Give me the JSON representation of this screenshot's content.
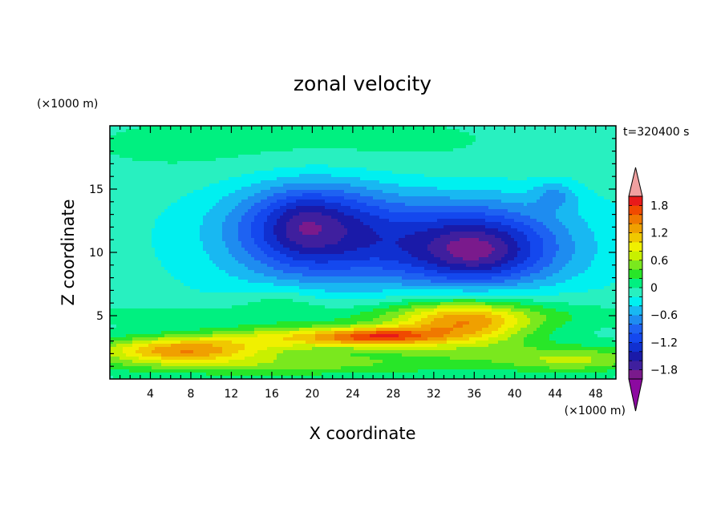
{
  "chart_data": {
    "type": "heatmap",
    "title": "zonal velocity",
    "xlabel": "X coordinate",
    "ylabel": "Z coordinate",
    "x_unit": "(×1000 m)",
    "z_unit": "(×1000 m)",
    "time_label": "t=320400 s",
    "xlim": [
      0,
      50
    ],
    "ylim": [
      0,
      20
    ],
    "x_ticks": [
      4,
      8,
      12,
      16,
      20,
      24,
      28,
      32,
      36,
      40,
      44,
      48
    ],
    "y_ticks": [
      5,
      10,
      15
    ],
    "colorbar": {
      "levels": [
        -2.0,
        -1.8,
        -1.6,
        -1.4,
        -1.2,
        -1.0,
        -0.8,
        -0.6,
        -0.4,
        -0.2,
        0,
        0.2,
        0.4,
        0.6,
        0.8,
        1.0,
        1.2,
        1.4,
        1.6,
        1.8,
        2.0
      ],
      "colors": [
        "#7a1a8c",
        "#3f1f9e",
        "#1a1aa8",
        "#1030d0",
        "#1448ee",
        "#1e62f2",
        "#1e8cf0",
        "#18b8f2",
        "#00f0f0",
        "#28f0c0",
        "#00f080",
        "#28e628",
        "#7ae81e",
        "#c8f000",
        "#f0f000",
        "#f0c800",
        "#f0a000",
        "#f07800",
        "#f04a00",
        "#e81a1a"
      ],
      "under_color": "#8c0aa0",
      "over_color": "#f0a0a0",
      "tick_labels": [
        "1.8",
        "1.2",
        "0.6",
        "0",
        "−0.6",
        "−1.2",
        "−1.8"
      ],
      "tick_values": [
        1.8,
        1.2,
        0.6,
        0,
        -0.6,
        -1.2,
        -1.8
      ]
    },
    "grid": false,
    "legend": "right",
    "background_value": -0.1,
    "features": [
      {
        "x": 20,
        "z": 11.8,
        "amp": -1.25,
        "sx": 5.5,
        "sz": 2.6
      },
      {
        "x": 19,
        "z": 12.3,
        "amp": -0.2,
        "sx": 2.0,
        "sz": 1.5
      },
      {
        "x": 36,
        "z": 10.3,
        "amp": -1.35,
        "sx": 6.0,
        "sz": 2.3
      },
      {
        "x": 36,
        "z": 10.0,
        "amp": -0.2,
        "sx": 2.5,
        "sz": 1.0
      },
      {
        "x": 28,
        "z": 11.0,
        "amp": -0.35,
        "sx": 14,
        "sz": 4.0
      },
      {
        "x": 20,
        "z": 18.5,
        "amp": 0.2,
        "sx": 18,
        "sz": 2.2
      },
      {
        "x": 28,
        "z": 16.5,
        "amp": 0.05,
        "sx": 16,
        "sz": 1.5
      },
      {
        "x": 44,
        "z": 14.5,
        "amp": -0.4,
        "sx": 1.5,
        "sz": 0.8
      },
      {
        "x": 7,
        "z": 2.3,
        "amp": 1.25,
        "sx": 5.5,
        "sz": 0.7
      },
      {
        "x": 20,
        "z": 3.3,
        "amp": 0.95,
        "sx": 7,
        "sz": 0.6
      },
      {
        "x": 27,
        "z": 3.4,
        "amp": 1.05,
        "sx": 4,
        "sz": 0.5
      },
      {
        "x": 35,
        "z": 4.3,
        "amp": 1.05,
        "sx": 4.5,
        "sz": 1.2
      },
      {
        "x": 35,
        "z": 5.3,
        "amp": 0.45,
        "sx": 7,
        "sz": 1.6
      },
      {
        "x": 25,
        "z": 1.8,
        "amp": 0.35,
        "sx": 20,
        "sz": 1.0
      },
      {
        "x": 46,
        "z": 1.5,
        "amp": 0.55,
        "sx": 5,
        "sz": 0.7
      },
      {
        "x": 15,
        "z": 1.0,
        "amp": 0.35,
        "sx": 12,
        "sz": 0.6
      },
      {
        "x": 17,
        "z": 6.2,
        "amp": 0.3,
        "sx": 3,
        "sz": 0.9
      },
      {
        "x": 25,
        "z": 5.0,
        "amp": 0.25,
        "sx": 25,
        "sz": 0.7
      }
    ]
  }
}
